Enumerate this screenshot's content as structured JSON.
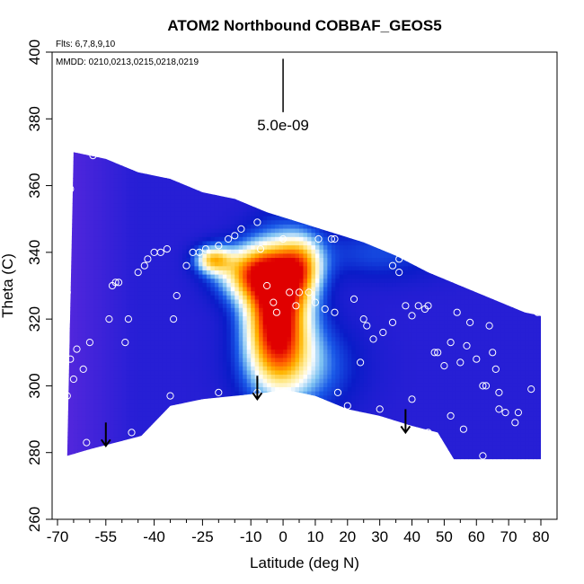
{
  "chart_data": {
    "type": "heatmap",
    "title": "ATOM2 Northbound COBBAF_GEOS5",
    "notes": {
      "flights": "Flts: 6,7,8,9,10",
      "dates": "MMDD: 0210,0213,0215,0218,0219"
    },
    "xlabel": "Latitude (deg N)",
    "ylabel": "Theta (C)",
    "xlim": [
      -70,
      80
    ],
    "ylim": [
      260,
      400
    ],
    "x_ticks": [
      "-70",
      "-55",
      "-40",
      "-25",
      "-10",
      "0",
      "10",
      "20",
      "30",
      "40",
      "50",
      "60",
      "70",
      "80"
    ],
    "x_minor_ticks": [
      -65,
      -60,
      -50,
      -45,
      -35,
      -30,
      -20,
      -15,
      -5,
      5,
      15,
      25,
      35,
      45,
      55,
      65,
      75
    ],
    "y_ticks": [
      "260",
      "280",
      "300",
      "320",
      "340",
      "360",
      "380",
      "400"
    ],
    "scale_label": "5.0e-09",
    "colorscale": [
      "#6a2be0",
      "#2a1fd6",
      "#0a1cc8",
      "#1a5ae8",
      "#7ec2f2",
      "#ffffff",
      "#ffe98a",
      "#ffb400",
      "#ff5a00",
      "#e00000"
    ],
    "field": {
      "base_value": 0.12,
      "plumes": [
        {
          "x": -2,
          "y": 322,
          "sx": 7,
          "sy": 14,
          "amp": 0.9
        },
        {
          "x": -10,
          "y": 334,
          "sx": 8,
          "sy": 6,
          "amp": 0.55
        },
        {
          "x": 6,
          "y": 336,
          "sx": 5,
          "sy": 7,
          "amp": 0.45
        },
        {
          "x": -22,
          "y": 338,
          "sx": 4,
          "sy": 3,
          "amp": 0.5
        },
        {
          "x": 5,
          "y": 306,
          "sx": 12,
          "sy": 10,
          "amp": 0.3
        },
        {
          "x": 30,
          "y": 340,
          "sx": 15,
          "sy": 6,
          "amp": 0.18
        }
      ],
      "west_violet": {
        "x_end": -45,
        "amount": 0.09
      }
    },
    "data_region": {
      "top": [
        [
          -65,
          370
        ],
        [
          -55,
          368
        ],
        [
          -45,
          364
        ],
        [
          -35,
          362
        ],
        [
          -25,
          358
        ],
        [
          -15,
          356
        ],
        [
          -5,
          352
        ],
        [
          5,
          349
        ],
        [
          15,
          346
        ],
        [
          25,
          343
        ],
        [
          35,
          339
        ],
        [
          45,
          334
        ],
        [
          55,
          330
        ],
        [
          65,
          326
        ],
        [
          75,
          322
        ],
        [
          80,
          321
        ]
      ],
      "bottom": [
        [
          -67,
          279
        ],
        [
          -60,
          281
        ],
        [
          -52,
          283
        ],
        [
          -44,
          285
        ],
        [
          -35,
          294
        ],
        [
          -25,
          296
        ],
        [
          -15,
          297
        ],
        [
          -5,
          298
        ],
        [
          0,
          299
        ],
        [
          10,
          297
        ],
        [
          20,
          293
        ],
        [
          30,
          291
        ],
        [
          40,
          288
        ],
        [
          48,
          286
        ],
        [
          53,
          278
        ],
        [
          80,
          278
        ]
      ]
    },
    "sample_points": [
      [
        -68,
        342
      ],
      [
        -69,
        337
      ],
      [
        -67,
        328
      ],
      [
        -66,
        308
      ],
      [
        -65,
        302
      ],
      [
        -64,
        311
      ],
      [
        -62,
        305
      ],
      [
        -60,
        313
      ],
      [
        -61,
        283
      ],
      [
        -67,
        297
      ],
      [
        -66,
        359
      ],
      [
        -59,
        369
      ],
      [
        -57,
        370
      ],
      [
        -53,
        330
      ],
      [
        -52,
        331
      ],
      [
        -51,
        331
      ],
      [
        -54,
        320
      ],
      [
        -48,
        320
      ],
      [
        -49,
        313
      ],
      [
        -47,
        286
      ],
      [
        -45,
        334
      ],
      [
        -43,
        336
      ],
      [
        -42,
        338
      ],
      [
        -40,
        340
      ],
      [
        -38,
        340
      ],
      [
        -36,
        341
      ],
      [
        -33,
        327
      ],
      [
        -34,
        320
      ],
      [
        -35,
        297
      ],
      [
        -28,
        340
      ],
      [
        -26,
        340
      ],
      [
        -24,
        341
      ],
      [
        -20,
        342
      ],
      [
        -17,
        344
      ],
      [
        -15,
        345
      ],
      [
        -13,
        347
      ],
      [
        -20,
        298
      ],
      [
        -7,
        341
      ],
      [
        -5,
        330
      ],
      [
        -3,
        325
      ],
      [
        0,
        344
      ],
      [
        2,
        328
      ],
      [
        5,
        328
      ],
      [
        8,
        328
      ],
      [
        11,
        344
      ],
      [
        15,
        344
      ],
      [
        16,
        344
      ],
      [
        -8,
        298
      ],
      [
        -2,
        322
      ],
      [
        4,
        324
      ],
      [
        10,
        325
      ],
      [
        13,
        323
      ],
      [
        16,
        322
      ],
      [
        17,
        298
      ],
      [
        12,
        295
      ],
      [
        20,
        294
      ],
      [
        22,
        326
      ],
      [
        25,
        320
      ],
      [
        26,
        318
      ],
      [
        28,
        314
      ],
      [
        31,
        316
      ],
      [
        34,
        319
      ],
      [
        36,
        334
      ],
      [
        36,
        338
      ],
      [
        38,
        324
      ],
      [
        40,
        321
      ],
      [
        42,
        324
      ],
      [
        44,
        323
      ],
      [
        45,
        324
      ],
      [
        47,
        310
      ],
      [
        48,
        310
      ],
      [
        50,
        306
      ],
      [
        52,
        313
      ],
      [
        54,
        322
      ],
      [
        55,
        307
      ],
      [
        57,
        312
      ],
      [
        58,
        319
      ],
      [
        60,
        308
      ],
      [
        62,
        300
      ],
      [
        63,
        300
      ],
      [
        65,
        310
      ],
      [
        66,
        305
      ],
      [
        67,
        293
      ],
      [
        67,
        298
      ],
      [
        69,
        292
      ],
      [
        72,
        289
      ],
      [
        73,
        292
      ],
      [
        77,
        299
      ],
      [
        79,
        322
      ],
      [
        80,
        322
      ],
      [
        30,
        293
      ],
      [
        40,
        296
      ],
      [
        52,
        291
      ],
      [
        56,
        287
      ],
      [
        62,
        279
      ],
      [
        45,
        286
      ],
      [
        24,
        307
      ],
      [
        34,
        336
      ],
      [
        -8,
        349
      ],
      [
        64,
        318
      ],
      [
        -30,
        336
      ]
    ],
    "arrows": [
      {
        "x": -55,
        "y_from": 289,
        "y_to": 282
      },
      {
        "x": -8,
        "y_from": 303,
        "y_to": 296
      },
      {
        "x": 38,
        "y_from": 293,
        "y_to": 286
      }
    ],
    "scale_bar": {
      "x": 0,
      "y_from": 382,
      "y_to": 398
    }
  }
}
